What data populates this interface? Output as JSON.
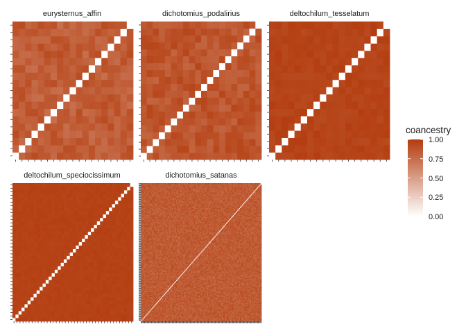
{
  "chart_data": {
    "type": "heatmap",
    "fill_variable": "coancestry",
    "color_scale": {
      "low": "#ffffff",
      "high": "#b33c0e",
      "limits": [
        0,
        1
      ],
      "breaks": [
        1.0,
        0.75,
        0.5,
        0.25,
        0.0
      ],
      "break_labels": [
        "1.00",
        "0.75",
        "0.50",
        "0.25",
        "0.00"
      ]
    },
    "diagonal_color": "#ffffff",
    "legend": {
      "title": "coancestry",
      "placement": "right"
    },
    "facets": [
      {
        "name": "eurysternus_affin",
        "n": 19,
        "mean": 0.83,
        "spread": 0.09
      },
      {
        "name": "dichotomius_podalirius",
        "n": 20,
        "mean": 0.87,
        "spread": 0.08
      },
      {
        "name": "deltochilum_tesselatum",
        "n": 19,
        "mean": 0.96,
        "spread": 0.03
      },
      {
        "name": "deltochilum_speciocissimum",
        "n": 40,
        "mean": 0.97,
        "spread": 0.015
      },
      {
        "name": "dichotomius_satanas",
        "n": 140,
        "mean": 0.84,
        "spread": 0.09
      }
    ]
  }
}
